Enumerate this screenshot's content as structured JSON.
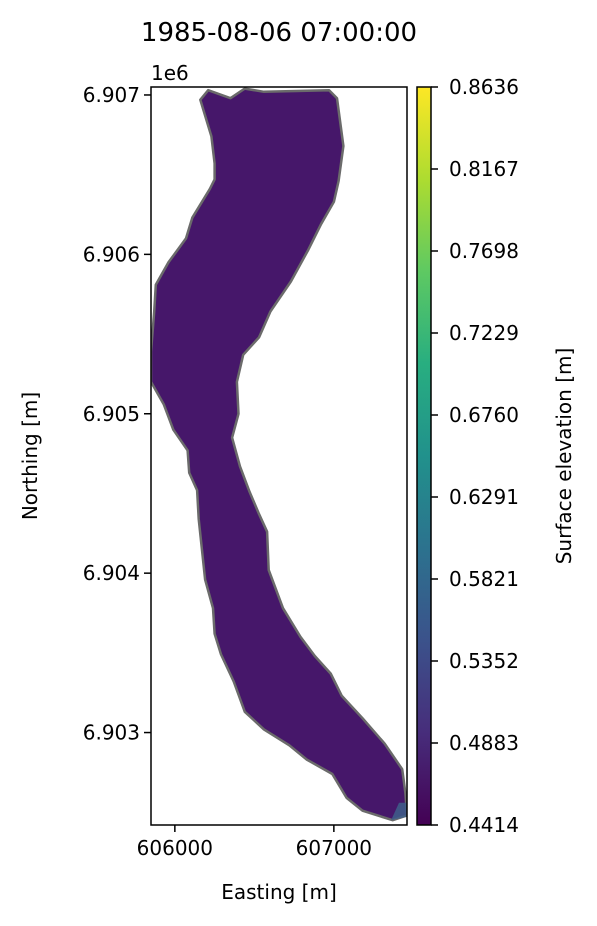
{
  "chart_data": {
    "type": "heatmap",
    "title": "1985-08-06 07:00:00",
    "xlabel": "Easting [m]",
    "ylabel": "Northing [m]",
    "y_offset_label": "1e6",
    "colorbar_label": "Surface elevation [m]",
    "colormap": "viridis",
    "grid": false,
    "xlim": [
      605850,
      607460
    ],
    "ylim": [
      6902420,
      6907050
    ],
    "x_ticks": [
      606000,
      607000
    ],
    "x_tick_labels": [
      "606000",
      "607000"
    ],
    "y_ticks": [
      6903000,
      6904000,
      6905000,
      6906000,
      6907000
    ],
    "y_tick_labels": [
      "6.903",
      "6.904",
      "6.905",
      "6.906",
      "6.907"
    ],
    "colorbar_range": [
      0.4414,
      0.8636
    ],
    "colorbar_ticks": [
      "0.4414",
      "0.4883",
      "0.5352",
      "0.5821",
      "0.6291",
      "0.6760",
      "0.7229",
      "0.7698",
      "0.8167",
      "0.8636"
    ],
    "colorbar_colors": [
      "#440154",
      "#472d7b",
      "#3b528b",
      "#2c728e",
      "#21918c",
      "#28ae80",
      "#5ec962",
      "#addc30",
      "#fde725"
    ],
    "field_value": 0.4414,
    "field_color": "#46176a",
    "outline_color": "#6b6b6b",
    "outlet_color": "#3e5f8a",
    "domain_outline": [
      [
        606160,
        6906970
      ],
      [
        606210,
        6907030
      ],
      [
        606350,
        6906980
      ],
      [
        606440,
        6907040
      ],
      [
        606560,
        6907020
      ],
      [
        606970,
        6907030
      ],
      [
        607020,
        6906980
      ],
      [
        607060,
        6906680
      ],
      [
        607030,
        6906460
      ],
      [
        607000,
        6906330
      ],
      [
        606920,
        6906190
      ],
      [
        606840,
        6906030
      ],
      [
        606730,
        6905830
      ],
      [
        606600,
        6905640
      ],
      [
        606530,
        6905480
      ],
      [
        606430,
        6905370
      ],
      [
        606390,
        6905200
      ],
      [
        606400,
        6905000
      ],
      [
        606360,
        6904850
      ],
      [
        606410,
        6904670
      ],
      [
        606470,
        6904510
      ],
      [
        606530,
        6904370
      ],
      [
        606580,
        6904260
      ],
      [
        606590,
        6904020
      ],
      [
        606680,
        6903780
      ],
      [
        606790,
        6903600
      ],
      [
        606880,
        6903480
      ],
      [
        606980,
        6903370
      ],
      [
        607050,
        6903230
      ],
      [
        607180,
        6903090
      ],
      [
        607320,
        6902930
      ],
      [
        607430,
        6902770
      ],
      [
        607450,
        6902620
      ],
      [
        607460,
        6902480
      ],
      [
        607370,
        6902450
      ],
      [
        607180,
        6902510
      ],
      [
        607080,
        6902590
      ],
      [
        606990,
        6902740
      ],
      [
        606830,
        6902830
      ],
      [
        606720,
        6902920
      ],
      [
        606560,
        6903020
      ],
      [
        606440,
        6903130
      ],
      [
        606370,
        6903320
      ],
      [
        606290,
        6903490
      ],
      [
        606250,
        6903620
      ],
      [
        606240,
        6903780
      ],
      [
        606190,
        6903960
      ],
      [
        606170,
        6904150
      ],
      [
        606150,
        6904340
      ],
      [
        606140,
        6904520
      ],
      [
        606090,
        6904630
      ],
      [
        606080,
        6904770
      ],
      [
        605990,
        6904900
      ],
      [
        605930,
        6905060
      ],
      [
        605850,
        6905200
      ],
      [
        605850,
        6905390
      ],
      [
        605870,
        6905640
      ],
      [
        605880,
        6905810
      ],
      [
        605960,
        6905950
      ],
      [
        606070,
        6906100
      ],
      [
        606110,
        6906230
      ],
      [
        606220,
        6906410
      ],
      [
        606250,
        6906470
      ],
      [
        606250,
        6906570
      ],
      [
        606230,
        6906740
      ]
    ]
  }
}
